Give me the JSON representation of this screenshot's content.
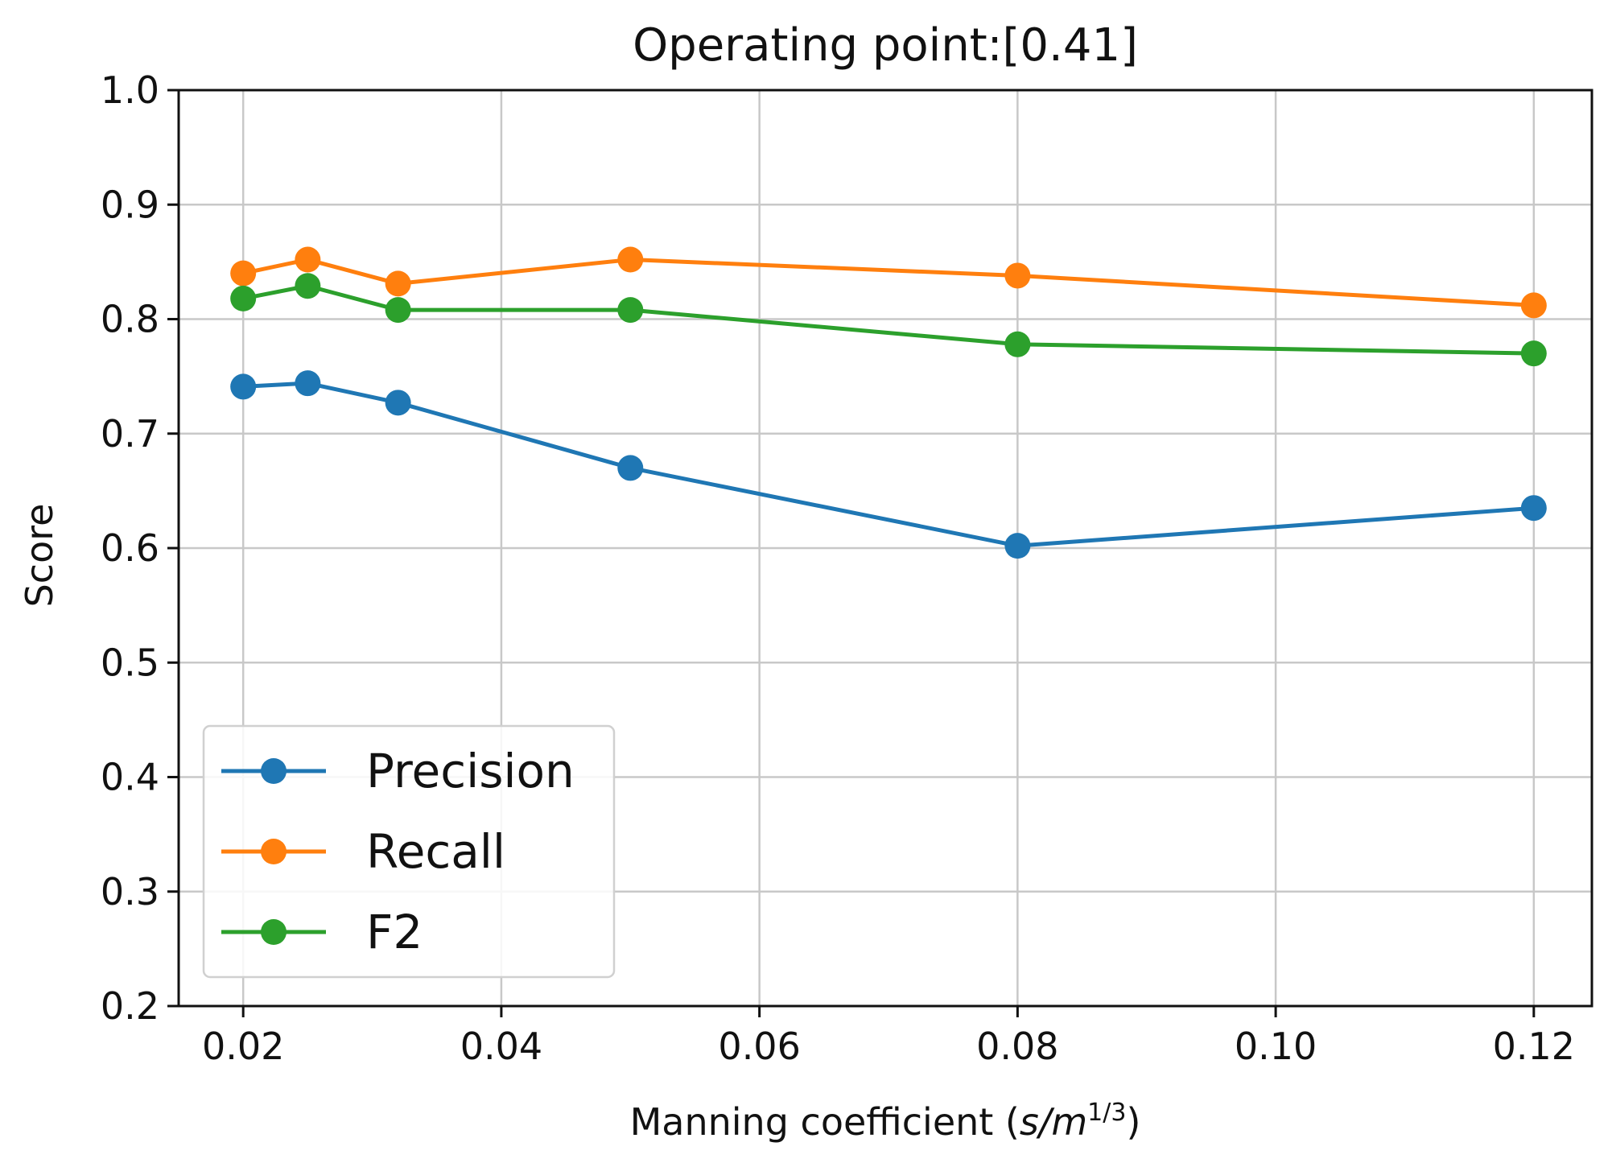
{
  "chart_data": {
    "type": "line",
    "title": "Operating point:[0.41]",
    "xlabel": "Manning coefficient (",
    "xlabel_unit": "s/m",
    "xlabel_exp": "1/3",
    "xlabel_close": ")",
    "ylabel": "Score",
    "xlim": [
      0.015,
      0.1245
    ],
    "ylim": [
      0.2,
      1.0
    ],
    "xticks": [
      0.02,
      0.04,
      0.06,
      0.08,
      0.1,
      0.12
    ],
    "xtick_labels": [
      "0.02",
      "0.04",
      "0.06",
      "0.08",
      "0.10",
      "0.12"
    ],
    "yticks": [
      0.2,
      0.3,
      0.4,
      0.5,
      0.6,
      0.7,
      0.8,
      0.9,
      1.0
    ],
    "ytick_labels": [
      "0.2",
      "0.3",
      "0.4",
      "0.5",
      "0.6",
      "0.7",
      "0.8",
      "0.9",
      "1.0"
    ],
    "grid": true,
    "legend_position": "lower-left",
    "x": [
      0.02,
      0.025,
      0.032,
      0.05,
      0.08,
      0.12
    ],
    "series": [
      {
        "name": "Precision",
        "color": "#1f77b4",
        "values": [
          0.741,
          0.744,
          0.727,
          0.67,
          0.602,
          0.635
        ]
      },
      {
        "name": "Recall",
        "color": "#ff7f0e",
        "values": [
          0.84,
          0.852,
          0.831,
          0.852,
          0.838,
          0.812
        ]
      },
      {
        "name": "F2",
        "color": "#2ca02c",
        "values": [
          0.818,
          0.829,
          0.808,
          0.808,
          0.778,
          0.77
        ]
      }
    ]
  }
}
